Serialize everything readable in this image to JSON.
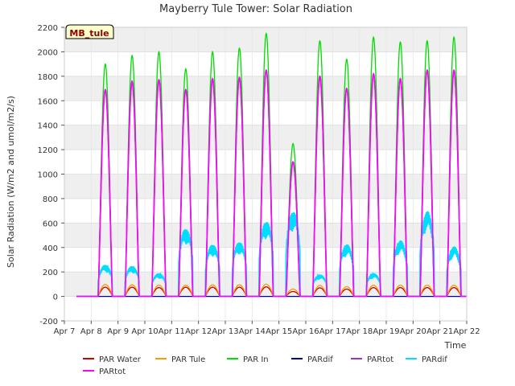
{
  "chart_data": {
    "type": "line",
    "title": "Mayberry Tule Tower: Solar Radiation",
    "xlabel": "Time",
    "ylabel": "Solar Radiation (W/m2 and umol/m2/s)",
    "annotation": "MB_tule",
    "xlim": [
      "2024-04-07",
      "2024-04-22"
    ],
    "ylim": [
      -200,
      2200
    ],
    "yticks": [
      -200,
      0,
      200,
      400,
      600,
      800,
      1000,
      1200,
      1400,
      1600,
      1800,
      2000,
      2200
    ],
    "xticks": [
      "2024-04-07",
      "2024-04-08",
      "2024-04-09",
      "2024-04-10",
      "2024-04-11",
      "2024-04-12",
      "2024-04-13",
      "2024-04-14",
      "2024-04-15",
      "2024-04-16",
      "2024-04-17",
      "2024-04-18",
      "2024-04-19",
      "2024-04-20",
      "2024-04-21",
      "2024-04-22"
    ],
    "xtick_labels": [
      "Apr 7",
      "Apr 8",
      "Apr 9",
      "Apr 10",
      "Apr 11",
      "Apr 12",
      "Apr 13",
      "Apr 14",
      "Apr 15",
      "Apr 16",
      "Apr 17",
      "Apr 18",
      "Apr 19",
      "Apr 20",
      "Apr 21",
      "Apr 22"
    ],
    "grid": true,
    "legend_position": "bottom",
    "series_note": "Daily peak values (x = date, y = peak); diurnal curves rise from 0 after ~06:00 and return to 0 by ~19:00",
    "series": [
      {
        "name": "PAR Water",
        "color": "#cc0000",
        "x": [
          "2024-04-08",
          "2024-04-09",
          "2024-04-10",
          "2024-04-11",
          "2024-04-12",
          "2024-04-13",
          "2024-04-14",
          "2024-04-15",
          "2024-04-16",
          "2024-04-17",
          "2024-04-18",
          "2024-04-19",
          "2024-04-20",
          "2024-04-21"
        ],
        "y": [
          75,
          75,
          72,
          75,
          75,
          75,
          78,
          40,
          70,
          60,
          72,
          72,
          72,
          72
        ]
      },
      {
        "name": "PAR Tule",
        "color": "#ff9900",
        "x": [
          "2024-04-08",
          "2024-04-09",
          "2024-04-10",
          "2024-04-11",
          "2024-04-12",
          "2024-04-13",
          "2024-04-14",
          "2024-04-15",
          "2024-04-16",
          "2024-04-17",
          "2024-04-18",
          "2024-04-19",
          "2024-04-20",
          "2024-04-21"
        ],
        "y": [
          98,
          95,
          92,
          92,
          95,
          95,
          100,
          60,
          90,
          80,
          92,
          92,
          92,
          92
        ]
      },
      {
        "name": "PAR In",
        "color": "#00dd00",
        "x": [
          "2024-04-08",
          "2024-04-09",
          "2024-04-10",
          "2024-04-11",
          "2024-04-12",
          "2024-04-13",
          "2024-04-14",
          "2024-04-15",
          "2024-04-16",
          "2024-04-17",
          "2024-04-18",
          "2024-04-19",
          "2024-04-20",
          "2024-04-21"
        ],
        "y": [
          1900,
          1970,
          2000,
          1860,
          2000,
          2030,
          2150,
          1250,
          2090,
          1940,
          2120,
          2080,
          2090,
          2120
        ]
      },
      {
        "name": "PARdif",
        "color": "#000099",
        "x": [
          "2024-04-08",
          "2024-04-09",
          "2024-04-10",
          "2024-04-11",
          "2024-04-12",
          "2024-04-13",
          "2024-04-14",
          "2024-04-15",
          "2024-04-16",
          "2024-04-17",
          "2024-04-18",
          "2024-04-19",
          "2024-04-20",
          "2024-04-21"
        ],
        "y": [
          0,
          0,
          0,
          0,
          0,
          0,
          0,
          0,
          0,
          0,
          0,
          0,
          0,
          0
        ]
      },
      {
        "name": "PARtot",
        "color": "#9933cc",
        "x": [
          "2024-04-08",
          "2024-04-09",
          "2024-04-10",
          "2024-04-11",
          "2024-04-12",
          "2024-04-13",
          "2024-04-14",
          "2024-04-15",
          "2024-04-16",
          "2024-04-17",
          "2024-04-18",
          "2024-04-19",
          "2024-04-20",
          "2024-04-21"
        ],
        "y": [
          1690,
          1760,
          1770,
          1690,
          1780,
          1790,
          1850,
          1100,
          1800,
          1700,
          1820,
          1780,
          1850,
          1850
        ]
      },
      {
        "name": "PARdif",
        "color": "#00ddff",
        "x": [
          "2024-04-08",
          "2024-04-09",
          "2024-04-10",
          "2024-04-11",
          "2024-04-12",
          "2024-04-13",
          "2024-04-14",
          "2024-04-15",
          "2024-04-16",
          "2024-04-17",
          "2024-04-18",
          "2024-04-19",
          "2024-04-20",
          "2024-04-21"
        ],
        "y": [
          260,
          250,
          190,
          560,
          430,
          450,
          620,
          700,
          180,
          430,
          190,
          460,
          700,
          410
        ]
      },
      {
        "name": "PARtot",
        "color": "#ff00ff",
        "x": [
          "2024-04-08",
          "2024-04-09",
          "2024-04-10",
          "2024-04-11",
          "2024-04-12",
          "2024-04-13",
          "2024-04-14",
          "2024-04-15",
          "2024-04-16",
          "2024-04-17",
          "2024-04-18",
          "2024-04-19",
          "2024-04-20",
          "2024-04-21"
        ],
        "y": [
          1690,
          1750,
          1770,
          1690,
          1780,
          1790,
          1850,
          1100,
          1800,
          1700,
          1820,
          1780,
          1850,
          1850
        ]
      }
    ]
  }
}
